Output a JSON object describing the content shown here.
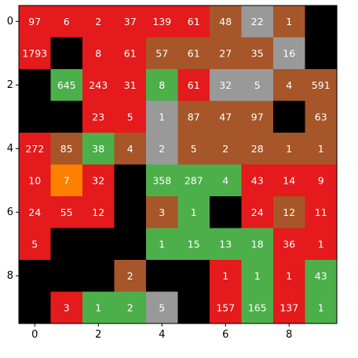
{
  "chart_data": {
    "type": "heatmap",
    "title": "",
    "xlabel": "",
    "ylabel": "",
    "xlim": [
      -0.5,
      9.5
    ],
    "ylim": [
      9.5,
      -0.5
    ],
    "x_ticks": [
      "0",
      "2",
      "4",
      "6",
      "8"
    ],
    "y_ticks": [
      "0",
      "2",
      "4",
      "6",
      "8"
    ],
    "grid": false,
    "colors": {
      "red": "#e41a1c",
      "brown": "#a65628",
      "gray": "#999999",
      "green": "#4daf4a",
      "orange": "#ff7f00",
      "black": "#000000"
    },
    "cell_colors": [
      [
        "red",
        "red",
        "red",
        "red",
        "red",
        "red",
        "brown",
        "gray",
        "brown",
        "black"
      ],
      [
        "red",
        "black",
        "red",
        "red",
        "brown",
        "brown",
        "brown",
        "brown",
        "gray",
        "black"
      ],
      [
        "black",
        "green",
        "red",
        "red",
        "green",
        "red",
        "gray",
        "gray",
        "brown",
        "brown"
      ],
      [
        "black",
        "black",
        "red",
        "red",
        "gray",
        "brown",
        "brown",
        "brown",
        "black",
        "brown"
      ],
      [
        "red",
        "brown",
        "green",
        "brown",
        "gray",
        "brown",
        "brown",
        "brown",
        "brown",
        "brown"
      ],
      [
        "red",
        "orange",
        "red",
        "black",
        "green",
        "green",
        "green",
        "red",
        "red",
        "red"
      ],
      [
        "red",
        "red",
        "red",
        "black",
        "brown",
        "green",
        "black",
        "red",
        "brown",
        "red"
      ],
      [
        "red",
        "black",
        "black",
        "black",
        "green",
        "green",
        "green",
        "green",
        "red",
        "red"
      ],
      [
        "black",
        "black",
        "black",
        "brown",
        "black",
        "black",
        "red",
        "green",
        "red",
        "green"
      ],
      [
        "black",
        "red",
        "green",
        "green",
        "gray",
        "black",
        "red",
        "green",
        "red",
        "green"
      ]
    ],
    "values": [
      [
        "97",
        "6",
        "2",
        "37",
        "139",
        "61",
        "48",
        "22",
        "1",
        ""
      ],
      [
        "1793",
        "",
        "8",
        "61",
        "57",
        "61",
        "27",
        "35",
        "16",
        ""
      ],
      [
        "",
        "645",
        "243",
        "31",
        "8",
        "61",
        "32",
        "5",
        "4",
        "591"
      ],
      [
        "",
        "",
        "23",
        "5",
        "1",
        "87",
        "47",
        "97",
        "",
        "63"
      ],
      [
        "272",
        "85",
        "38",
        "4",
        "2",
        "5",
        "2",
        "28",
        "1",
        "1"
      ],
      [
        "10",
        "7",
        "32",
        "",
        "358",
        "287",
        "4",
        "43",
        "14",
        "9"
      ],
      [
        "24",
        "55",
        "12",
        "",
        "3",
        "1",
        "",
        "24",
        "12",
        "11"
      ],
      [
        "5",
        "",
        "",
        "",
        "1",
        "15",
        "13",
        "18",
        "36",
        "1"
      ],
      [
        "",
        "",
        "",
        "2",
        "",
        "",
        "1",
        "1",
        "1",
        "43"
      ],
      [
        "",
        "3",
        "1",
        "2",
        "5",
        "",
        "157",
        "165",
        "137",
        "1"
      ]
    ]
  }
}
